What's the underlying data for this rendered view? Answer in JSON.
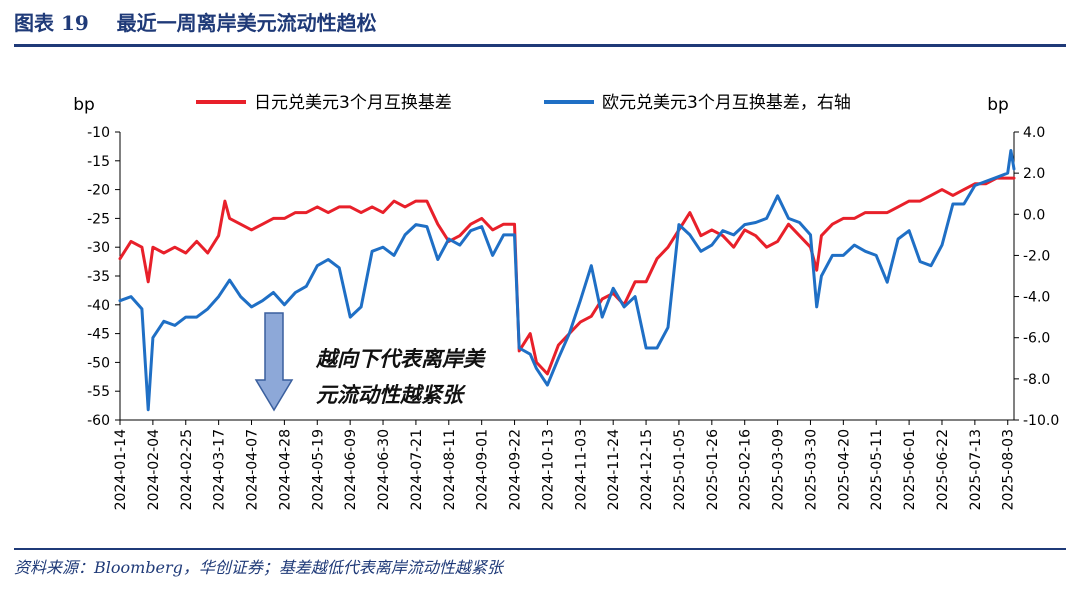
{
  "figure": {
    "title": "图表 19    最近一周离岸美元流动性趋松",
    "source": "资料来源：Bloomberg，华创证券；基差越低代表离岸流动性越紧张"
  },
  "chart_data": {
    "type": "line",
    "left_axis_unit": "bp",
    "right_axis_unit": "bp",
    "ylim_left": [
      -60,
      -10
    ],
    "ylim_right": [
      -10.0,
      4.0
    ],
    "yticks_left": [
      "-10",
      "-15",
      "-20",
      "-25",
      "-30",
      "-35",
      "-40",
      "-45",
      "-50",
      "-55",
      "-60"
    ],
    "yticks_right": [
      "4.0",
      "2.0",
      "0.0",
      "-2.0",
      "-4.0",
      "-6.0",
      "-8.0",
      "-10.0"
    ],
    "xticks": [
      "2024-01-14",
      "2024-02-04",
      "2024-02-25",
      "2024-03-17",
      "2024-04-07",
      "2024-04-28",
      "2024-05-19",
      "2024-06-09",
      "2024-06-30",
      "2024-07-21",
      "2024-08-11",
      "2024-09-01",
      "2024-09-22",
      "2024-10-13",
      "2024-11-03",
      "2024-11-24",
      "2024-12-15",
      "2025-01-05",
      "2025-01-26",
      "2025-02-16",
      "2025-03-09",
      "2025-03-30",
      "2025-04-20",
      "2025-05-11",
      "2025-06-01",
      "2025-06-22",
      "2025-07-13",
      "2025-08-03"
    ],
    "annotation": [
      "越向下代表离岸美",
      "元流动性越紧张"
    ],
    "legend_position": "top",
    "series": [
      {
        "name": "日元兑美元3个月互换基差",
        "axis": "left",
        "color": "#e8202a",
        "x": [
          "2024-01-14",
          "2024-01-21",
          "2024-01-28",
          "2024-02-01",
          "2024-02-04",
          "2024-02-11",
          "2024-02-18",
          "2024-02-25",
          "2024-03-03",
          "2024-03-10",
          "2024-03-17",
          "2024-03-21",
          "2024-03-24",
          "2024-03-31",
          "2024-04-07",
          "2024-04-14",
          "2024-04-21",
          "2024-04-28",
          "2024-05-05",
          "2024-05-12",
          "2024-05-19",
          "2024-05-26",
          "2024-06-02",
          "2024-06-09",
          "2024-06-16",
          "2024-06-23",
          "2024-06-30",
          "2024-07-07",
          "2024-07-14",
          "2024-07-21",
          "2024-07-28",
          "2024-08-04",
          "2024-08-11",
          "2024-08-18",
          "2024-08-25",
          "2024-09-01",
          "2024-09-08",
          "2024-09-15",
          "2024-09-22",
          "2024-09-25",
          "2024-10-02",
          "2024-10-06",
          "2024-10-13",
          "2024-10-20",
          "2024-10-27",
          "2024-11-03",
          "2024-11-10",
          "2024-11-17",
          "2024-11-24",
          "2024-12-01",
          "2024-12-08",
          "2024-12-15",
          "2024-12-22",
          "2024-12-29",
          "2025-01-05",
          "2025-01-12",
          "2025-01-19",
          "2025-01-26",
          "2025-02-02",
          "2025-02-09",
          "2025-02-16",
          "2025-02-23",
          "2025-03-02",
          "2025-03-09",
          "2025-03-16",
          "2025-03-23",
          "2025-03-30",
          "2025-04-03",
          "2025-04-06",
          "2025-04-13",
          "2025-04-20",
          "2025-04-27",
          "2025-05-04",
          "2025-05-11",
          "2025-05-18",
          "2025-05-25",
          "2025-06-01",
          "2025-06-08",
          "2025-06-15",
          "2025-06-22",
          "2025-06-29",
          "2025-07-06",
          "2025-07-13",
          "2025-07-20",
          "2025-07-27",
          "2025-08-03",
          "2025-08-07"
        ],
        "values": [
          -32,
          -29,
          -30,
          -36,
          -30,
          -31,
          -30,
          -31,
          -29,
          -31,
          -28,
          -22,
          -25,
          -26,
          -27,
          -26,
          -25,
          -25,
          -24,
          -24,
          -23,
          -24,
          -23,
          -23,
          -24,
          -23,
          -24,
          -22,
          -23,
          -22,
          -22,
          -26,
          -29,
          -28,
          -26,
          -25,
          -27,
          -26,
          -26,
          -48,
          -45,
          -50,
          -52,
          -47,
          -45,
          -43,
          -42,
          -39,
          -38,
          -40,
          -36,
          -36,
          -32,
          -30,
          -27,
          -24,
          -28,
          -27,
          -28,
          -30,
          -27,
          -28,
          -30,
          -29,
          -26,
          -28,
          -30,
          -34,
          -28,
          -26,
          -25,
          -25,
          -24,
          -24,
          -24,
          -23,
          -22,
          -22,
          -21,
          -20,
          -21,
          -20,
          -19,
          -19,
          -18,
          -18,
          -18
        ]
      },
      {
        "name": "欧元兑美元3个月互换基差，右轴",
        "axis": "right",
        "color": "#1f6fc5",
        "x": [
          "2024-01-14",
          "2024-01-21",
          "2024-01-28",
          "2024-02-01",
          "2024-02-04",
          "2024-02-11",
          "2024-02-18",
          "2024-02-25",
          "2024-03-03",
          "2024-03-10",
          "2024-03-17",
          "2024-03-24",
          "2024-03-31",
          "2024-04-07",
          "2024-04-14",
          "2024-04-21",
          "2024-04-28",
          "2024-05-05",
          "2024-05-12",
          "2024-05-19",
          "2024-05-26",
          "2024-06-02",
          "2024-06-09",
          "2024-06-16",
          "2024-06-23",
          "2024-06-30",
          "2024-07-07",
          "2024-07-14",
          "2024-07-21",
          "2024-07-28",
          "2024-08-04",
          "2024-08-11",
          "2024-08-18",
          "2024-08-25",
          "2024-09-01",
          "2024-09-08",
          "2024-09-15",
          "2024-09-22",
          "2024-09-25",
          "2024-10-02",
          "2024-10-06",
          "2024-10-13",
          "2024-10-20",
          "2024-10-27",
          "2024-11-03",
          "2024-11-10",
          "2024-11-17",
          "2024-11-24",
          "2024-12-01",
          "2024-12-08",
          "2024-12-15",
          "2024-12-22",
          "2024-12-29",
          "2025-01-05",
          "2025-01-12",
          "2025-01-19",
          "2025-01-26",
          "2025-02-02",
          "2025-02-09",
          "2025-02-16",
          "2025-02-23",
          "2025-03-02",
          "2025-03-09",
          "2025-03-16",
          "2025-03-23",
          "2025-03-30",
          "2025-04-03",
          "2025-04-06",
          "2025-04-13",
          "2025-04-20",
          "2025-04-27",
          "2025-05-04",
          "2025-05-11",
          "2025-05-18",
          "2025-05-25",
          "2025-06-01",
          "2025-06-08",
          "2025-06-15",
          "2025-06-22",
          "2025-06-29",
          "2025-07-06",
          "2025-07-13",
          "2025-07-20",
          "2025-07-27",
          "2025-08-03",
          "2025-08-05",
          "2025-08-07"
        ],
        "values": [
          -4.2,
          -4.0,
          -4.6,
          -9.5,
          -6.0,
          -5.2,
          -5.4,
          -5.0,
          -5.0,
          -4.6,
          -4.0,
          -3.2,
          -4.0,
          -4.5,
          -4.2,
          -3.8,
          -4.4,
          -3.8,
          -3.5,
          -2.5,
          -2.2,
          -2.6,
          -5.0,
          -4.5,
          -1.8,
          -1.6,
          -2.0,
          -1.0,
          -0.5,
          -0.6,
          -2.2,
          -1.2,
          -1.5,
          -0.8,
          -0.6,
          -2.0,
          -1.0,
          -1.0,
          -6.5,
          -6.8,
          -7.5,
          -8.3,
          -7.0,
          -5.8,
          -4.2,
          -2.5,
          -5.0,
          -3.6,
          -4.5,
          -4.0,
          -6.5,
          -6.5,
          -5.5,
          -0.5,
          -1.0,
          -1.8,
          -1.5,
          -0.8,
          -1.0,
          -0.5,
          -0.4,
          -0.2,
          0.9,
          -0.2,
          -0.4,
          -1.0,
          -4.5,
          -3.0,
          -2.0,
          -2.0,
          -1.5,
          -1.8,
          -2.0,
          -3.3,
          -1.2,
          -0.8,
          -2.3,
          -2.5,
          -1.5,
          0.5,
          0.5,
          1.4,
          1.6,
          1.8,
          2.0,
          3.1,
          2.2
        ]
      }
    ]
  }
}
